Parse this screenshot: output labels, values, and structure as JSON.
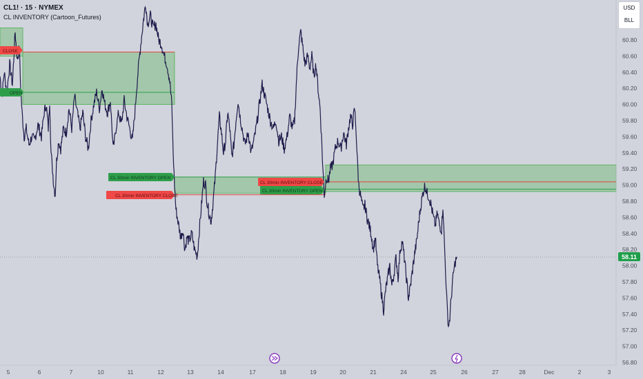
{
  "header": {
    "title": "CL1! · 15 · NYMEX",
    "indicator": "CL INVENTORY (Cartoon_Futures)"
  },
  "buttons": {
    "currency": "USD",
    "unit": "BLL"
  },
  "labels": {
    "open_left": "OPEN",
    "close_left": "CLOSE",
    "open_1": "CL 30min INVENTORY OPEN",
    "close_1": "CL 30min INVENTORY CLOSE",
    "close_2": "CL 30min INVENTORY CLOSE",
    "open_2": "CL 30min INVENTORY OPEN"
  },
  "colors": {
    "background": "#d1d4dc",
    "candle": "#1e1b4b",
    "zone_fill": "#4caf50",
    "open_line": "#2e9e4a",
    "close_line": "#e0443e",
    "price_badge": "#1e9e4a"
  },
  "chart_data": {
    "type": "line",
    "symbol": "CL1!",
    "interval": "15",
    "exchange": "NYMEX",
    "y_ticks": [
      "60.80",
      "60.60",
      "60.40",
      "60.20",
      "60.00",
      "59.80",
      "59.60",
      "59.40",
      "59.20",
      "59.00",
      "58.80",
      "58.60",
      "58.40",
      "58.20",
      "58.00",
      "57.80",
      "57.60",
      "57.40",
      "57.20",
      "57.00",
      "56.80"
    ],
    "x_ticks": [
      "5",
      "6",
      "7",
      "10",
      "11",
      "12",
      "13",
      "14",
      "17",
      "18",
      "19",
      "20",
      "21",
      "24",
      "25",
      "26",
      "27",
      "28",
      "Dec",
      "2",
      "3"
    ],
    "last_price": "58.11",
    "ylim": [
      56.75,
      61.3
    ],
    "price_path": [
      [
        0,
        60.35
      ],
      [
        3,
        60.1
      ],
      [
        6,
        60.4
      ],
      [
        10,
        60.15
      ],
      [
        14,
        60.5
      ],
      [
        18,
        60.25
      ],
      [
        22,
        60.9
      ],
      [
        25,
        60.55
      ],
      [
        28,
        60.7
      ],
      [
        30,
        60.2
      ],
      [
        32,
        59.9
      ],
      [
        35,
        59.6
      ],
      [
        38,
        59.7
      ],
      [
        42,
        59.5
      ],
      [
        46,
        59.6
      ],
      [
        50,
        59.55
      ],
      [
        55,
        59.75
      ],
      [
        60,
        59.6
      ],
      [
        64,
        59.9
      ],
      [
        67,
        60.0
      ],
      [
        70,
        59.7
      ],
      [
        72,
        60.05
      ],
      [
        74,
        59.4
      ],
      [
        76,
        59.2
      ],
      [
        78,
        59.0
      ],
      [
        80,
        58.88
      ],
      [
        82,
        59.3
      ],
      [
        85,
        59.55
      ],
      [
        88,
        59.45
      ],
      [
        92,
        59.7
      ],
      [
        96,
        59.65
      ],
      [
        100,
        59.95
      ],
      [
        104,
        59.7
      ],
      [
        108,
        60.1
      ],
      [
        112,
        59.9
      ],
      [
        116,
        59.7
      ],
      [
        120,
        59.9
      ],
      [
        124,
        59.6
      ],
      [
        128,
        59.45
      ],
      [
        132,
        59.8
      ],
      [
        136,
        60.0
      ],
      [
        140,
        60.15
      ],
      [
        144,
        59.95
      ],
      [
        148,
        60.2
      ],
      [
        152,
        60.0
      ],
      [
        156,
        59.9
      ],
      [
        160,
        60.05
      ],
      [
        164,
        59.45
      ],
      [
        166,
        59.55
      ],
      [
        168,
        59.7
      ],
      [
        172,
        59.9
      ],
      [
        176,
        59.75
      ],
      [
        180,
        60.05
      ],
      [
        184,
        59.85
      ],
      [
        188,
        59.7
      ],
      [
        192,
        59.55
      ],
      [
        196,
        59.95
      ],
      [
        198,
        60.2
      ],
      [
        200,
        60.4
      ],
      [
        204,
        60.75
      ],
      [
        208,
        61.05
      ],
      [
        211,
        61.25
      ],
      [
        214,
        61.0
      ],
      [
        218,
        61.1
      ],
      [
        222,
        60.95
      ],
      [
        226,
        61.0
      ],
      [
        230,
        60.8
      ],
      [
        234,
        60.75
      ],
      [
        238,
        60.6
      ],
      [
        242,
        60.5
      ],
      [
        246,
        60.3
      ],
      [
        249,
        60.0
      ],
      [
        251,
        59.4
      ],
      [
        253,
        59.0
      ],
      [
        255,
        58.7
      ],
      [
        258,
        58.55
      ],
      [
        262,
        58.35
      ],
      [
        265,
        58.45
      ],
      [
        268,
        58.2
      ],
      [
        271,
        58.35
      ],
      [
        274,
        58.3
      ],
      [
        278,
        58.4
      ],
      [
        282,
        58.2
      ],
      [
        286,
        58.12
      ],
      [
        289,
        58.45
      ],
      [
        292,
        58.75
      ],
      [
        295,
        59.05
      ],
      [
        298,
        59.0
      ],
      [
        300,
        58.8
      ],
      [
        303,
        58.65
      ],
      [
        306,
        58.55
      ],
      [
        309,
        58.8
      ],
      [
        312,
        59.1
      ],
      [
        315,
        59.5
      ],
      [
        318,
        59.85
      ],
      [
        321,
        59.65
      ],
      [
        324,
        59.4
      ],
      [
        327,
        59.55
      ],
      [
        330,
        59.9
      ],
      [
        333,
        59.7
      ],
      [
        336,
        59.35
      ],
      [
        339,
        59.5
      ],
      [
        342,
        59.8
      ],
      [
        345,
        60.05
      ],
      [
        348,
        59.85
      ],
      [
        351,
        59.7
      ],
      [
        355,
        59.5
      ],
      [
        360,
        59.65
      ],
      [
        364,
        59.4
      ],
      [
        368,
        59.55
      ],
      [
        372,
        59.75
      ],
      [
        376,
        60.0
      ],
      [
        380,
        60.25
      ],
      [
        384,
        60.1
      ],
      [
        388,
        59.95
      ],
      [
        392,
        59.8
      ],
      [
        396,
        59.7
      ],
      [
        400,
        59.8
      ],
      [
        404,
        59.55
      ],
      [
        408,
        59.6
      ],
      [
        412,
        59.45
      ],
      [
        416,
        59.6
      ],
      [
        420,
        59.85
      ],
      [
        424,
        59.7
      ],
      [
        427,
        59.8
      ],
      [
        430,
        60.35
      ],
      [
        433,
        60.75
      ],
      [
        436,
        60.9
      ],
      [
        439,
        60.7
      ],
      [
        442,
        60.5
      ],
      [
        446,
        60.6
      ],
      [
        449,
        60.45
      ],
      [
        452,
        60.6
      ],
      [
        455,
        60.35
      ],
      [
        458,
        60.5
      ],
      [
        461,
        60.2
      ],
      [
        464,
        59.95
      ],
      [
        466,
        59.6
      ],
      [
        468,
        59.2
      ],
      [
        470,
        58.88
      ],
      [
        473,
        59.1
      ],
      [
        476,
        59.05
      ],
      [
        479,
        59.2
      ],
      [
        482,
        59.25
      ],
      [
        486,
        59.45
      ],
      [
        490,
        59.55
      ],
      [
        494,
        59.45
      ],
      [
        498,
        59.65
      ],
      [
        502,
        59.5
      ],
      [
        505,
        59.7
      ],
      [
        508,
        59.85
      ],
      [
        511,
        59.75
      ],
      [
        514,
        59.95
      ],
      [
        516,
        59.7
      ],
      [
        518,
        59.3
      ],
      [
        520,
        59.0
      ],
      [
        523,
        58.85
      ],
      [
        526,
        58.7
      ],
      [
        529,
        58.75
      ],
      [
        532,
        58.6
      ],
      [
        535,
        58.5
      ],
      [
        538,
        58.4
      ],
      [
        541,
        58.2
      ],
      [
        544,
        58.35
      ],
      [
        547,
        58.0
      ],
      [
        550,
        57.85
      ],
      [
        553,
        57.65
      ],
      [
        556,
        57.45
      ],
      [
        559,
        57.7
      ],
      [
        562,
        57.85
      ],
      [
        565,
        58.0
      ],
      [
        568,
        57.75
      ],
      [
        571,
        57.9
      ],
      [
        574,
        58.1
      ],
      [
        577,
        57.85
      ],
      [
        580,
        58.2
      ],
      [
        583,
        58.3
      ],
      [
        586,
        58.1
      ],
      [
        589,
        57.85
      ],
      [
        592,
        57.6
      ],
      [
        595,
        57.75
      ],
      [
        598,
        57.95
      ],
      [
        601,
        58.15
      ],
      [
        604,
        58.3
      ],
      [
        607,
        58.55
      ],
      [
        610,
        58.75
      ],
      [
        613,
        58.9
      ],
      [
        616,
        59.0
      ],
      [
        619,
        58.9
      ],
      [
        622,
        58.85
      ],
      [
        625,
        58.75
      ],
      [
        628,
        58.6
      ],
      [
        631,
        58.5
      ],
      [
        634,
        58.65
      ],
      [
        637,
        58.5
      ],
      [
        640,
        58.45
      ],
      [
        642,
        58.75
      ],
      [
        644,
        58.3
      ],
      [
        646,
        57.9
      ],
      [
        648,
        57.5
      ],
      [
        650,
        57.25
      ],
      [
        652,
        57.35
      ],
      [
        654,
        57.6
      ],
      [
        656,
        57.8
      ],
      [
        658,
        57.95
      ],
      [
        660,
        58.05
      ],
      [
        662,
        58.11
      ]
    ],
    "inventory_zones": [
      {
        "x1": 0,
        "x2": 33,
        "top": 60.95,
        "bottom": 60.6
      },
      {
        "x1": 33,
        "x2": 253,
        "top": 60.65,
        "bottom": 60.0,
        "open": 60.15,
        "close": 60.65
      },
      {
        "x1": 253,
        "x2": 472,
        "top": 59.1,
        "bottom": 58.9,
        "open": 59.1,
        "close": 58.88
      },
      {
        "x1": 472,
        "x2": 893,
        "top": 59.25,
        "bottom": 58.92,
        "open": 58.95,
        "close": 59.04
      }
    ]
  }
}
